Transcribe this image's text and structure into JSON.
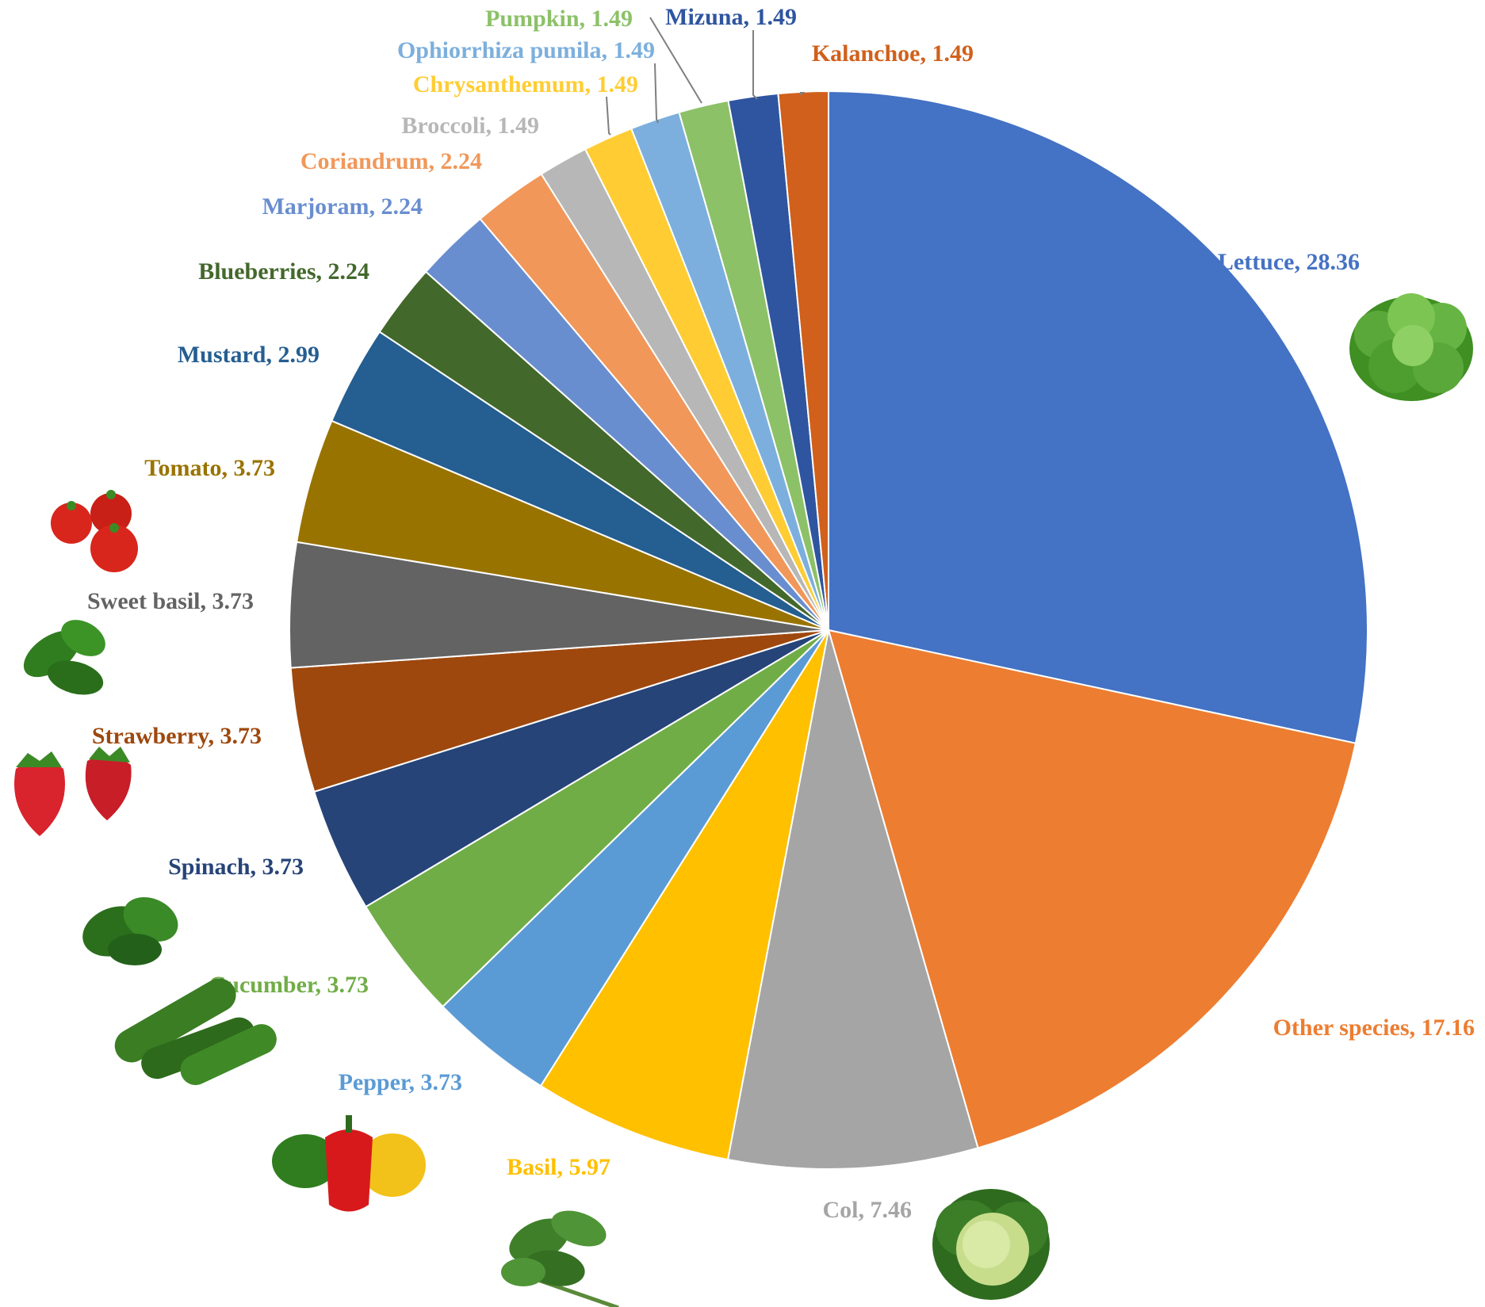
{
  "chart_data": {
    "type": "pie",
    "slices": [
      {
        "label": "Lettuce",
        "value": 28.36,
        "color": "#4472C4",
        "label_color": "#4472C4",
        "text": "Lettuce, 28.36",
        "icon": "lettuce-icon"
      },
      {
        "label": "Other species",
        "value": 17.16,
        "color": "#ED7D31",
        "label_color": "#ED7D31",
        "text": "Other species, 17.16"
      },
      {
        "label": "Col",
        "value": 7.46,
        "color": "#A5A5A5",
        "label_color": "#A5A5A5",
        "text": "Col, 7.46",
        "icon": "cabbage-icon"
      },
      {
        "label": "Basil",
        "value": 5.97,
        "color": "#FFC000",
        "label_color": "#FFC000",
        "text": "Basil, 5.97",
        "icon": "basil-icon"
      },
      {
        "label": "Pepper",
        "value": 3.73,
        "color": "#5B9BD5",
        "label_color": "#5B9BD5",
        "text": "Pepper, 3.73",
        "icon": "pepper-icon"
      },
      {
        "label": "Cucumber",
        "value": 3.73,
        "color": "#70AD47",
        "label_color": "#70AD47",
        "text": "Cucumber, 3.73",
        "icon": "cucumber-icon"
      },
      {
        "label": "Spinach",
        "value": 3.73,
        "color": "#264478",
        "label_color": "#264478",
        "text": "Spinach, 3.73",
        "icon": "spinach-icon"
      },
      {
        "label": "Strawberry",
        "value": 3.73,
        "color": "#9E480E",
        "label_color": "#9E480E",
        "text": "Strawberry, 3.73",
        "icon": "strawberry-icon"
      },
      {
        "label": "Sweet basil",
        "value": 3.73,
        "color": "#636363",
        "label_color": "#636363",
        "text": "Sweet basil, 3.73",
        "icon": "sweet-basil-icon"
      },
      {
        "label": "Tomato",
        "value": 3.73,
        "color": "#997300",
        "label_color": "#997300",
        "text": "Tomato, 3.73",
        "icon": "tomato-icon"
      },
      {
        "label": "Mustard",
        "value": 2.99,
        "color": "#255E91",
        "label_color": "#255E91",
        "text": "Mustard, 2.99"
      },
      {
        "label": "Blueberries",
        "value": 2.24,
        "color": "#43682B",
        "label_color": "#43682B",
        "text": "Blueberries, 2.24"
      },
      {
        "label": "Marjoram",
        "value": 2.24,
        "color": "#698ED0",
        "label_color": "#698ED0",
        "text": "Marjoram, 2.24"
      },
      {
        "label": "Coriandrum",
        "value": 2.24,
        "color": "#F1975A",
        "label_color": "#F1975A",
        "text": "Coriandrum, 2.24"
      },
      {
        "label": "Broccoli",
        "value": 1.49,
        "color": "#B7B7B7",
        "label_color": "#B7B7B7",
        "text": "Broccoli, 1.49"
      },
      {
        "label": "Chrysanthemum",
        "value": 1.49,
        "color": "#FFCD33",
        "label_color": "#FFCD33",
        "text": "Chrysanthemum, 1.49"
      },
      {
        "label": "Ophiorrhiza pumila",
        "value": 1.49,
        "color": "#7CAFDD",
        "label_color": "#7CAFDD",
        "text": "Ophiorrhiza pumila, 1.49"
      },
      {
        "label": "Pumpkin",
        "value": 1.49,
        "color": "#8CC168",
        "label_color": "#8CC168",
        "text": "Pumpkin, 1.49"
      },
      {
        "label": "Mizuna",
        "value": 1.49,
        "color": "#2F55A0",
        "label_color": "#2F55A0",
        "text": "Mizuna, 1.49"
      },
      {
        "label": "Kalanchoe",
        "value": 1.49,
        "color": "#D0601B",
        "label_color": "#D0601B",
        "text": "Kalanchoe, 1.49"
      }
    ],
    "start_angle": "12 o'clock",
    "direction": "clockwise",
    "legend": "none",
    "data_labels": "outside, category name and value"
  }
}
